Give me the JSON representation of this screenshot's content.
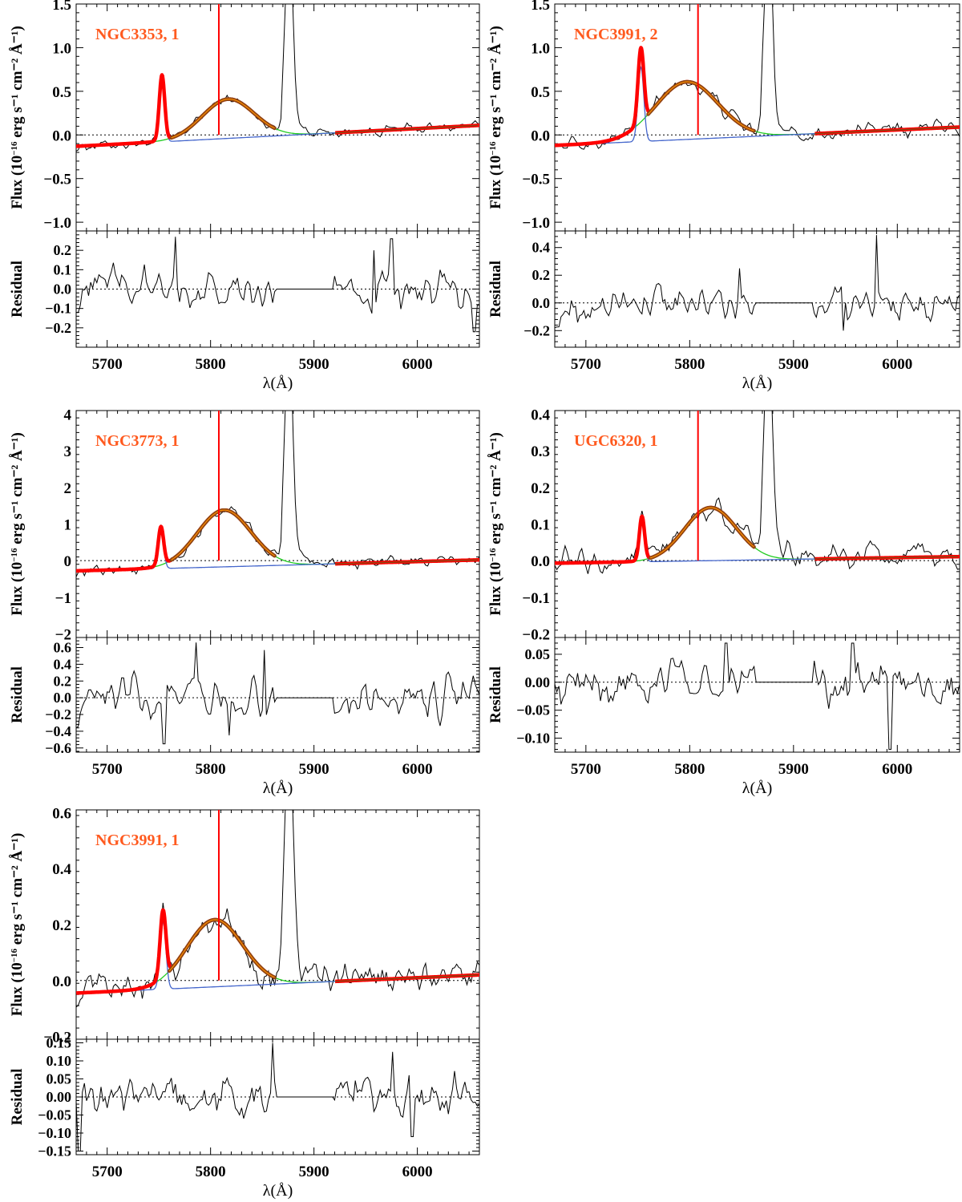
{
  "colors": {
    "data": "#000000",
    "fit_total": "#ff0000",
    "broad_component": "#8b4513",
    "broad_core": "#ff8c00",
    "narrow_component": "#4466cc",
    "wing_component": "#22cc22",
    "label": "#ff5a1f",
    "marker": "#ff0000"
  },
  "shared": {
    "x_label": "λ(Å)",
    "flux_label_prefix": "Flux (10",
    "flux_label_exp": "−16",
    "flux_label_units": " erg s⁻¹ cm⁻² Å⁻¹)",
    "residual_label": "Residual",
    "x_range": [
      5670,
      6060
    ],
    "x_ticks": [
      5700,
      5800,
      5900,
      6000
    ],
    "x_tick_labels": [
      "5700",
      "5800",
      "5900",
      "6000"
    ],
    "marker_wavelength": 5808
  },
  "chart_data": [
    {
      "type": "line",
      "title": "NGC3353, 1",
      "xlabel": "λ(Å)",
      "ylabel": "Flux (10^-16 erg s^-1 cm^-2 Å^-1)",
      "ylim": [
        -1.1,
        1.5
      ],
      "yticks": [
        -1.0,
        -0.5,
        0.0,
        0.5,
        1.0,
        1.5
      ],
      "ytick_labels": [
        "−1.0",
        "−0.5",
        "0.0",
        "0.5",
        "1.0",
        "1.5"
      ],
      "residual": {
        "ylabel": "Residual",
        "ylim": [
          -0.3,
          0.3
        ],
        "yticks": [
          -0.2,
          -0.1,
          0.0,
          0.1,
          0.2
        ],
        "ytick_labels": [
          "−0.2",
          "−0.1",
          "0.0",
          "0.1",
          "0.2"
        ],
        "amplitude": 0.09,
        "spikes": [
          [
            5766,
            0.27
          ],
          [
            5975,
            0.26
          ],
          [
            5958,
            0.2
          ],
          [
            6055,
            -0.22
          ]
        ]
      },
      "model": {
        "cont_start": -0.13,
        "cont_end": 0.11,
        "narrow_center": 5753,
        "narrow_amp": 0.75,
        "narrow_sigma": 2.6,
        "broad_center": 5817,
        "broad_amp": 0.45,
        "broad_sigma": 25,
        "broad_fit_range": [
          5762,
          5862
        ],
        "gap_range": [
          5863,
          5920
        ],
        "emission_line": {
          "center": 5876,
          "amp": 2.3,
          "sigma": 3.5
        },
        "noise": 0.05
      }
    },
    {
      "type": "line",
      "title": "NGC3991, 2",
      "xlabel": "λ(Å)",
      "ylabel": "Flux (10^-16 erg s^-1 cm^-2 Å^-1)",
      "ylim": [
        -1.1,
        1.5
      ],
      "yticks": [
        -1.0,
        -0.5,
        0.0,
        0.5,
        1.0,
        1.5
      ],
      "ytick_labels": [
        "−1.0",
        "−0.5",
        "0.0",
        "0.5",
        "1.0",
        "1.5"
      ],
      "residual": {
        "ylabel": "Residual",
        "ylim": [
          -0.32,
          0.52
        ],
        "yticks": [
          -0.2,
          0.0,
          0.2,
          0.4
        ],
        "ytick_labels": [
          "−0.2",
          "0.0",
          "0.2",
          "0.4"
        ],
        "amplitude": 0.12,
        "spikes": [
          [
            5980,
            0.49
          ],
          [
            5848,
            0.25
          ],
          [
            5948,
            -0.2
          ]
        ]
      },
      "model": {
        "cont_start": -0.12,
        "cont_end": 0.09,
        "narrow_center": 5753,
        "narrow_amp": 0.85,
        "narrow_sigma": 2.8,
        "broad_center": 5797,
        "broad_amp": 0.66,
        "broad_sigma": 30,
        "broad_fit_range": [
          5760,
          5862
        ],
        "gap_range": [
          5863,
          5920
        ],
        "emission_line": {
          "center": 5876,
          "amp": 2.3,
          "sigma": 3.5
        },
        "noise": 0.08
      }
    },
    {
      "type": "line",
      "title": "NGC3773, 1",
      "xlabel": "λ(Å)",
      "ylabel": "Flux (10^-16 erg s^-1 cm^-2 Å^-1)",
      "ylim": [
        -2.1,
        4.1
      ],
      "yticks": [
        -2,
        -1,
        0,
        1,
        2,
        3,
        4
      ],
      "ytick_labels": [
        "−2",
        "−1",
        "0",
        "1",
        "2",
        "3",
        "4"
      ],
      "residual": {
        "ylabel": "Residual",
        "ylim": [
          -0.65,
          0.72
        ],
        "yticks": [
          -0.6,
          -0.4,
          -0.2,
          0.0,
          0.2,
          0.4,
          0.6
        ],
        "ytick_labels": [
          "−0.6",
          "−0.4",
          "−0.2",
          "0.0",
          "0.2",
          "0.4",
          "0.6"
        ],
        "amplitude": 0.22,
        "spikes": [
          [
            5786,
            0.66
          ],
          [
            5852,
            0.57
          ],
          [
            5755,
            -0.55
          ],
          [
            5818,
            -0.45
          ]
        ]
      },
      "model": {
        "cont_start": -0.28,
        "cont_end": 0.02,
        "narrow_center": 5752,
        "narrow_amp": 1.05,
        "narrow_sigma": 2.6,
        "broad_center": 5813,
        "broad_amp": 1.55,
        "broad_sigma": 26,
        "broad_fit_range": [
          5762,
          5862
        ],
        "gap_range": [
          5863,
          5920
        ],
        "emission_line": {
          "center": 5876,
          "amp": 6,
          "sigma": 3.5
        },
        "noise": 0.15
      }
    },
    {
      "type": "line",
      "title": "UGC6320, 1",
      "xlabel": "λ(Å)",
      "ylabel": "Flux (10^-16 erg s^-1 cm^-2 Å^-1)",
      "ylim": [
        -0.21,
        0.41
      ],
      "yticks": [
        -0.2,
        -0.1,
        0.0,
        0.1,
        0.2,
        0.3,
        0.4
      ],
      "ytick_labels": [
        "−0.2",
        "−0.1",
        "0.0",
        "0.1",
        "0.2",
        "0.3",
        "0.4"
      ],
      "residual": {
        "ylabel": "Residual",
        "ylim": [
          -0.125,
          0.08
        ],
        "yticks": [
          -0.1,
          -0.05,
          0.0,
          0.05
        ],
        "ytick_labels": [
          "−0.10",
          "−0.05",
          "0.00",
          "0.05"
        ],
        "amplitude": 0.032,
        "spikes": [
          [
            5993,
            -0.12
          ],
          [
            5835,
            0.07
          ],
          [
            5957,
            0.07
          ]
        ]
      },
      "model": {
        "cont_start": -0.007,
        "cont_end": 0.011,
        "narrow_center": 5754,
        "narrow_amp": 0.12,
        "narrow_sigma": 2.5,
        "broad_center": 5820,
        "broad_amp": 0.145,
        "broad_sigma": 25,
        "broad_fit_range": [
          5762,
          5862
        ],
        "gap_range": [
          5863,
          5920
        ],
        "emission_line": {
          "center": 5876,
          "amp": 0.6,
          "sigma": 3.5
        },
        "noise": 0.03
      }
    },
    {
      "type": "line",
      "title": "NGC3991, 1",
      "xlabel": "λ(Å)",
      "ylabel": "Flux (10^-16 erg s^-1 cm^-2 Å^-1)",
      "ylim": [
        -0.21,
        0.61
      ],
      "yticks": [
        -0.2,
        0.0,
        0.2,
        0.4,
        0.6
      ],
      "ytick_labels": [
        "−0.2",
        "0.0",
        "0.2",
        "0.4",
        "0.6"
      ],
      "residual": {
        "ylabel": "Residual",
        "ylim": [
          -0.16,
          0.16
        ],
        "yticks": [
          -0.15,
          -0.1,
          -0.05,
          0.0,
          0.05,
          0.1,
          0.15
        ],
        "ytick_labels": [
          "−0.15",
          "−0.10",
          "−0.05",
          "0.00",
          "0.05",
          "0.10",
          "0.15"
        ],
        "amplitude": 0.05,
        "spikes": [
          [
            5860,
            0.15
          ],
          [
            5976,
            0.125
          ],
          [
            5673,
            -0.15
          ],
          [
            5995,
            -0.11
          ]
        ]
      },
      "model": {
        "cont_start": -0.045,
        "cont_end": 0.02,
        "narrow_center": 5754,
        "narrow_amp": 0.24,
        "narrow_sigma": 2.8,
        "broad_center": 5804,
        "broad_amp": 0.24,
        "broad_sigma": 27,
        "broad_fit_range": [
          5760,
          5862
        ],
        "gap_range": [
          5863,
          5920
        ],
        "emission_line": {
          "center": 5876,
          "amp": 0.9,
          "sigma": 3.5
        },
        "noise": 0.05
      }
    }
  ]
}
